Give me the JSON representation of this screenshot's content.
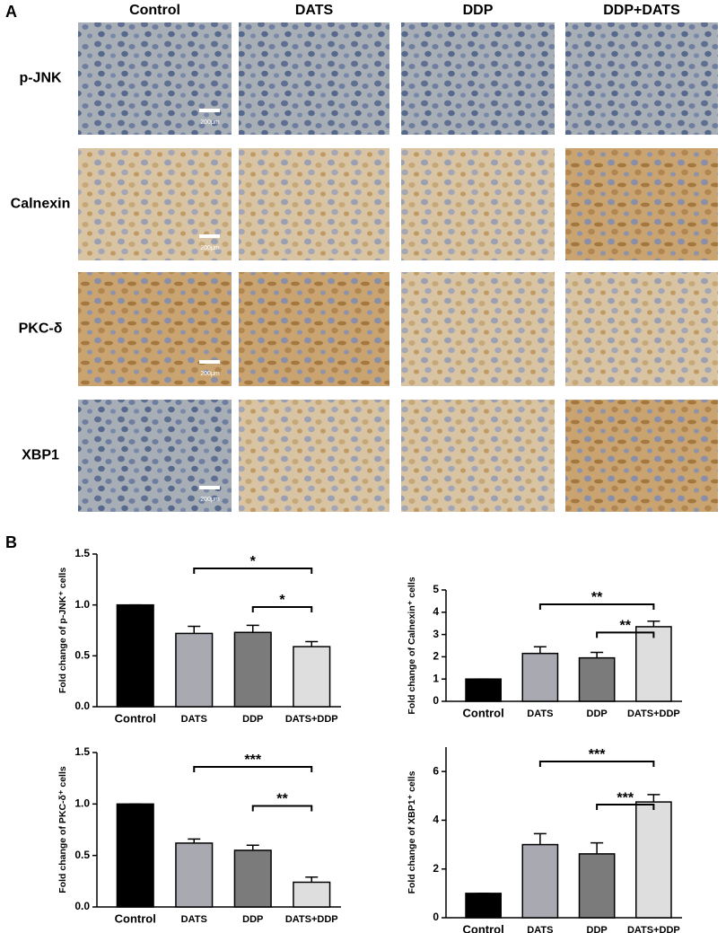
{
  "panel_a": {
    "label": "A",
    "columns": [
      "Control",
      "DATS",
      "DDP",
      "DDP+DATS"
    ],
    "rows": [
      "p-JNK",
      "Calnexin",
      "PKC-δ",
      "XBP1"
    ],
    "scale_bar_label": "200μm"
  },
  "panel_b_label": "B",
  "chart_data": [
    {
      "type": "bar",
      "y_label": "Fold change of  p-JNK⁺ cells",
      "categories": [
        "Control",
        "DATS",
        "DDP",
        "DATS+DDP"
      ],
      "values": [
        1.0,
        0.72,
        0.73,
        0.59
      ],
      "errors": [
        0,
        0.07,
        0.07,
        0.05
      ],
      "colors": [
        "#000000",
        "#a9a9b2",
        "#7b7b7b",
        "#dedede"
      ],
      "ylim": [
        0,
        1.5
      ],
      "yticks": [
        {
          "value": 0,
          "label": "0.0"
        },
        0.5,
        {
          "value": 1,
          "label": "1.0"
        },
        1.5
      ],
      "annotations": [
        {
          "from": "DATS",
          "to": "DATS+DDP",
          "label": "*"
        },
        {
          "from": "DDP",
          "to": "DATS+DDP",
          "label": "*"
        }
      ]
    },
    {
      "type": "bar",
      "y_label": "Fold change of  Calnexin⁺ cells",
      "categories": [
        "Control",
        "DATS",
        "DDP",
        "DATS+DDP"
      ],
      "values": [
        1.0,
        2.15,
        1.95,
        3.35
      ],
      "errors": [
        0,
        0.3,
        0.25,
        0.25
      ],
      "colors": [
        "#000000",
        "#a9a9b2",
        "#7b7b7b",
        "#dedede"
      ],
      "ylim": [
        0,
        5
      ],
      "yticks": [
        0,
        1,
        2,
        3,
        4,
        5
      ],
      "annotations": [
        {
          "from": "DATS",
          "to": "DATS+DDP",
          "label": "**"
        },
        {
          "from": "DDP",
          "to": "DATS+DDP",
          "label": "**"
        }
      ]
    },
    {
      "type": "bar",
      "y_label": "Fold change of  PKC-δ⁺ cells",
      "categories": [
        "Control",
        "DATS",
        "DDP",
        "DATS+DDP"
      ],
      "values": [
        1.0,
        0.62,
        0.55,
        0.24
      ],
      "errors": [
        0,
        0.04,
        0.05,
        0.05
      ],
      "colors": [
        "#000000",
        "#a9a9b2",
        "#7b7b7b",
        "#dedede"
      ],
      "ylim": [
        0,
        1.5
      ],
      "yticks": [
        {
          "value": 0,
          "label": "0.0"
        },
        0.5,
        {
          "value": 1,
          "label": "1.0"
        },
        1.5
      ],
      "annotations": [
        {
          "from": "DATS",
          "to": "DATS+DDP",
          "label": "***"
        },
        {
          "from": "DDP",
          "to": "DATS+DDP",
          "label": "**"
        }
      ]
    },
    {
      "type": "bar",
      "y_label": "Fold change of  XBP1⁺ cells",
      "categories": [
        "Control",
        "DATS",
        "DDP",
        "DATS+DDP"
      ],
      "values": [
        1.0,
        3.0,
        2.62,
        4.75
      ],
      "errors": [
        0,
        0.45,
        0.45,
        0.3
      ],
      "colors": [
        "#000000",
        "#a9a9b2",
        "#7b7b7b",
        "#dedede"
      ],
      "ylim": [
        0,
        7
      ],
      "yticks": [
        0,
        2,
        4,
        6
      ],
      "annotations": [
        {
          "from": "DATS",
          "to": "DATS+DDP",
          "label": "***"
        },
        {
          "from": "DDP",
          "to": "DATS+DDP",
          "label": "***"
        }
      ]
    }
  ]
}
